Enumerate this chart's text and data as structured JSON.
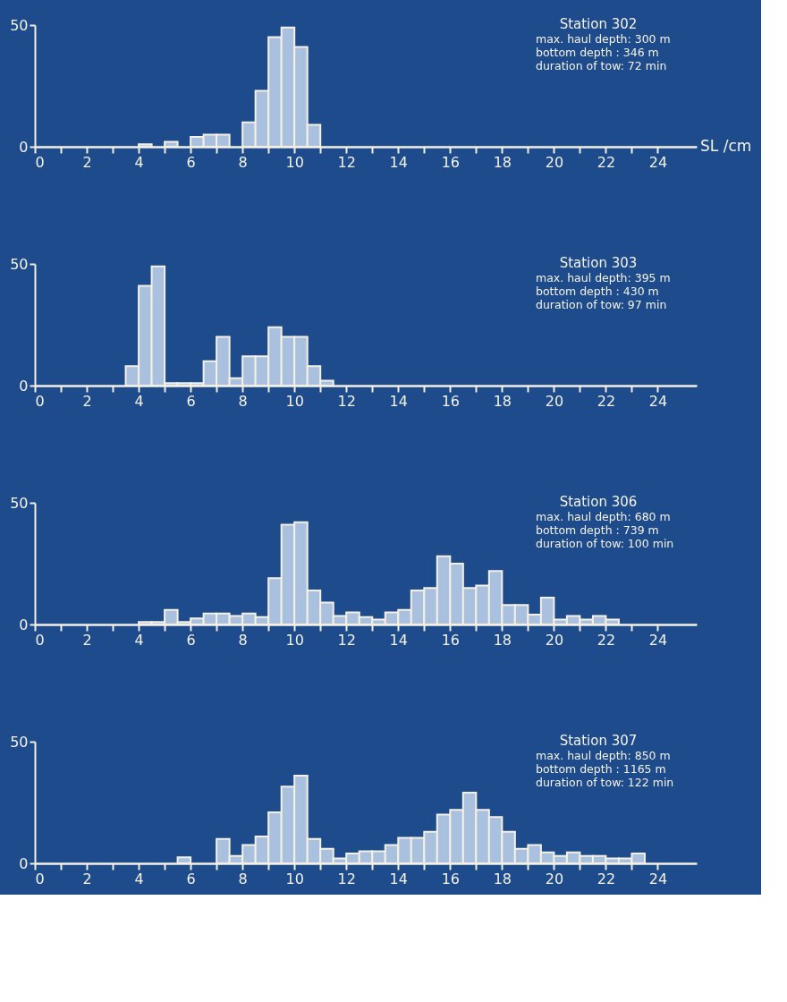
{
  "chart_data": [
    {
      "type": "histogram",
      "xlabel": "SL /cm",
      "annotations": [
        "Station 302",
        "max. haul depth: 300 m",
        "bottom depth   : 346 m",
        "duration of tow:  72 min"
      ],
      "color": "#a9c0de",
      "bins": [
        4.0,
        4.5,
        5.0,
        5.5,
        6.0,
        6.5,
        7.0,
        7.5,
        8.0,
        8.5,
        9.0,
        9.5,
        10.0,
        10.5,
        11.0
      ],
      "values": [
        1,
        0,
        2,
        0,
        4,
        5,
        5,
        0,
        10,
        23,
        45,
        49,
        41,
        9
      ],
      "xlim": [
        0,
        25.5
      ],
      "xticks": [
        0,
        {
          "value": 1,
          "label": null
        },
        2,
        {
          "value": 3,
          "label": null
        },
        4,
        {
          "value": 5,
          "label": null
        },
        6,
        {
          "value": 7,
          "label": null
        },
        8,
        {
          "value": 9,
          "label": null
        },
        10,
        {
          "value": 11,
          "label": null
        },
        12,
        {
          "value": 13,
          "label": null
        },
        14,
        {
          "value": 15,
          "label": null
        },
        16,
        {
          "value": 17,
          "label": null
        },
        18,
        {
          "value": 19,
          "label": null
        },
        20,
        {
          "value": 21,
          "label": null
        },
        22,
        {
          "value": 23,
          "label": null
        },
        24
      ],
      "ylim": [
        0,
        50
      ],
      "yticks": [
        0,
        50
      ],
      "grid": false
    },
    {
      "type": "histogram",
      "annotations": [
        "Station 303",
        "max. haul depth: 395 m",
        "bottom depth   : 430 m",
        "duration of tow:  97 min"
      ],
      "color": "#a9c0de",
      "bins": [
        3.5,
        4.0,
        4.5,
        5.0,
        5.5,
        6.0,
        6.5,
        7.0,
        7.5,
        8.0,
        8.5,
        9.0,
        9.5,
        10.0,
        10.5,
        11.0,
        11.5
      ],
      "values": [
        8,
        41,
        49,
        1,
        1,
        1,
        10,
        20,
        3,
        12,
        12,
        24,
        20,
        20,
        8,
        2
      ],
      "xlim": [
        0,
        25.5
      ],
      "xticks": [
        0,
        {
          "value": 1,
          "label": null
        },
        2,
        {
          "value": 3,
          "label": null
        },
        4,
        {
          "value": 5,
          "label": null
        },
        6,
        {
          "value": 7,
          "label": null
        },
        8,
        {
          "value": 9,
          "label": null
        },
        10,
        {
          "value": 11,
          "label": null
        },
        12,
        {
          "value": 13,
          "label": null
        },
        14,
        {
          "value": 15,
          "label": null
        },
        16,
        {
          "value": 17,
          "label": null
        },
        18,
        {
          "value": 19,
          "label": null
        },
        20,
        {
          "value": 21,
          "label": null
        },
        22,
        {
          "value": 23,
          "label": null
        },
        24
      ],
      "ylim": [
        0,
        50
      ],
      "yticks": [
        0,
        50
      ],
      "grid": false
    },
    {
      "type": "histogram",
      "annotations": [
        "Station 306",
        "max. haul depth: 680 m",
        "bottom depth   : 739 m",
        "duration of tow: 100 min"
      ],
      "color": "#a9c0de",
      "bins": [
        4.0,
        4.5,
        5.0,
        5.5,
        6.0,
        6.5,
        7.0,
        7.5,
        8.0,
        8.5,
        9.0,
        9.5,
        10.0,
        10.5,
        11.0,
        11.5,
        12.0,
        12.5,
        13.0,
        13.5,
        14.0,
        14.5,
        15.0,
        15.5,
        16.0,
        16.5,
        17.0,
        17.5,
        18.0,
        18.5,
        19.0,
        19.5,
        20.0,
        20.5,
        21.0,
        21.5,
        22.0,
        22.5
      ],
      "values": [
        1,
        1,
        6,
        1,
        2.5,
        4.5,
        4.5,
        3.5,
        4.5,
        3,
        19,
        41,
        42,
        14,
        9,
        3.5,
        5,
        3,
        2,
        5,
        6,
        14,
        15,
        28,
        25,
        15,
        16,
        22,
        8,
        8,
        4,
        11,
        2,
        3.5,
        2,
        3.5,
        2
      ],
      "xlim": [
        0,
        25.5
      ],
      "xticks": [
        0,
        {
          "value": 1,
          "label": null
        },
        2,
        {
          "value": 3,
          "label": null
        },
        4,
        {
          "value": 5,
          "label": null
        },
        6,
        {
          "value": 7,
          "label": null
        },
        8,
        {
          "value": 9,
          "label": null
        },
        10,
        {
          "value": 11,
          "label": null
        },
        12,
        {
          "value": 13,
          "label": null
        },
        14,
        {
          "value": 15,
          "label": null
        },
        16,
        {
          "value": 17,
          "label": null
        },
        18,
        {
          "value": 19,
          "label": null
        },
        20,
        {
          "value": 21,
          "label": null
        },
        22,
        {
          "value": 23,
          "label": null
        },
        24
      ],
      "ylim": [
        0,
        50
      ],
      "yticks": [
        0,
        50
      ],
      "grid": false
    },
    {
      "type": "histogram",
      "annotations": [
        "Station 307",
        "max. haul depth: 850 m",
        "bottom depth   : 1165 m",
        "duration of tow: 122 min"
      ],
      "color": "#a9c0de",
      "bins": [
        5.5,
        6.0,
        6.5,
        7.0,
        7.5,
        8.0,
        8.5,
        9.0,
        9.5,
        10.0,
        10.5,
        11.0,
        11.5,
        12.0,
        12.5,
        13.0,
        13.5,
        14.0,
        14.5,
        15.0,
        15.5,
        16.0,
        16.5,
        17.0,
        17.5,
        18.0,
        18.5,
        19.0,
        19.5,
        20.0,
        20.5,
        21.0,
        21.5,
        22.0,
        22.5,
        23.0,
        23.5
      ],
      "values": [
        2.5,
        0,
        0,
        10,
        3,
        7.5,
        11,
        21,
        31.5,
        36,
        10,
        6,
        2,
        4,
        5,
        5,
        7.5,
        10.5,
        10.5,
        13,
        20,
        22,
        29,
        22,
        19,
        13,
        6,
        7.5,
        4.5,
        3,
        4.5,
        3,
        3,
        2,
        2,
        4
      ],
      "xlim": [
        0,
        25.5
      ],
      "xticks": [
        0,
        {
          "value": 1,
          "label": null
        },
        2,
        {
          "value": 3,
          "label": null
        },
        4,
        {
          "value": 5,
          "label": null
        },
        6,
        {
          "value": 7,
          "label": null
        },
        8,
        {
          "value": 9,
          "label": null
        },
        10,
        {
          "value": 11,
          "label": null
        },
        12,
        {
          "value": 13,
          "label": null
        },
        14,
        {
          "value": 15,
          "label": null
        },
        16,
        {
          "value": 17,
          "label": null
        },
        18,
        {
          "value": 19,
          "label": null
        },
        20,
        {
          "value": 21,
          "label": null
        },
        22,
        {
          "value": 23,
          "label": null
        },
        24
      ],
      "ylim": [
        0,
        50
      ],
      "yticks": [
        0,
        50
      ],
      "grid": false
    }
  ]
}
